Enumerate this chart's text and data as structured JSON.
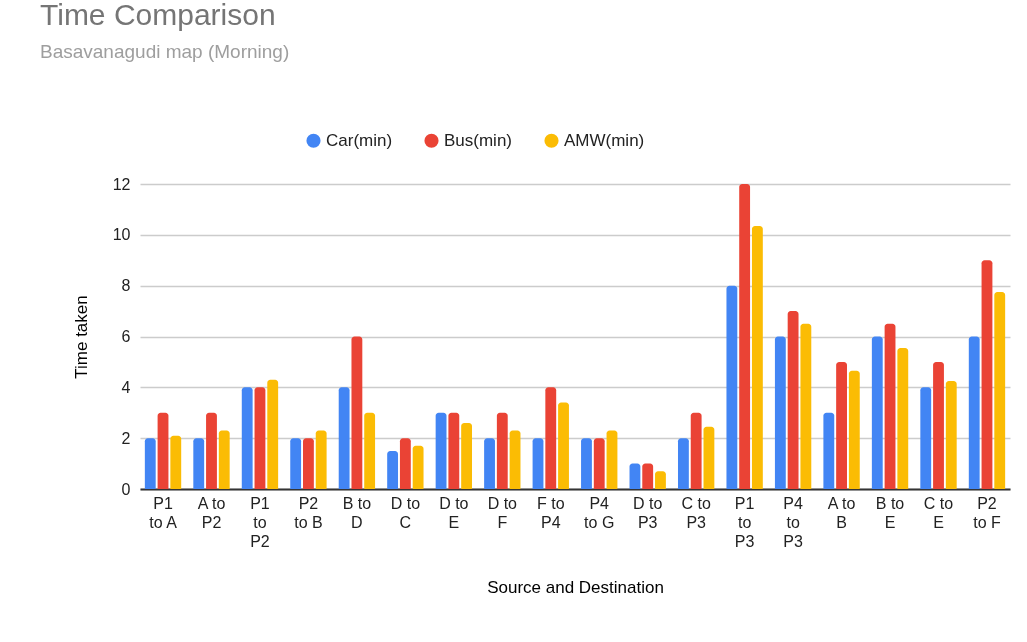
{
  "chart_data": {
    "type": "bar",
    "title": "Time Comparison",
    "subtitle": "Basavanagudi map (Morning)",
    "xlabel": "Source and Destination",
    "ylabel": "Time taken",
    "categories": [
      "P1 to A",
      "A to P2",
      "P1 to P2",
      "P2 to B",
      "B to D",
      "D to C",
      "D to E",
      "D to F",
      "F to P4",
      "P4 to G",
      "D to P3",
      "C to P3",
      "P1 to P3",
      "P4 to P3",
      "A to B",
      "B to E",
      "C to E",
      "P2 to F"
    ],
    "series": [
      {
        "name": "Car(min)",
        "color": "#4285f4",
        "values": [
          2,
          2,
          4,
          2,
          4,
          1.5,
          3,
          2,
          2,
          2,
          1,
          2,
          8,
          6,
          3,
          6,
          4,
          6
        ]
      },
      {
        "name": "Bus(min)",
        "color": "#ea4335",
        "values": [
          3,
          3,
          4,
          2,
          6,
          2,
          3,
          3,
          4,
          2,
          1,
          3,
          12,
          7,
          5,
          6.5,
          5,
          9
        ]
      },
      {
        "name": "AMW(min)",
        "color": "#fbbc04",
        "values": [
          2.1,
          2.3,
          4.3,
          2.3,
          3,
          1.7,
          2.6,
          2.3,
          3.4,
          2.3,
          0.7,
          2.45,
          10.35,
          6.5,
          4.65,
          5.55,
          4.25,
          7.75
        ]
      }
    ],
    "ylim": [
      0,
      12
    ],
    "yticks": [
      0,
      2,
      4,
      6,
      8,
      10,
      12
    ],
    "grid": "y",
    "legend": "top"
  }
}
